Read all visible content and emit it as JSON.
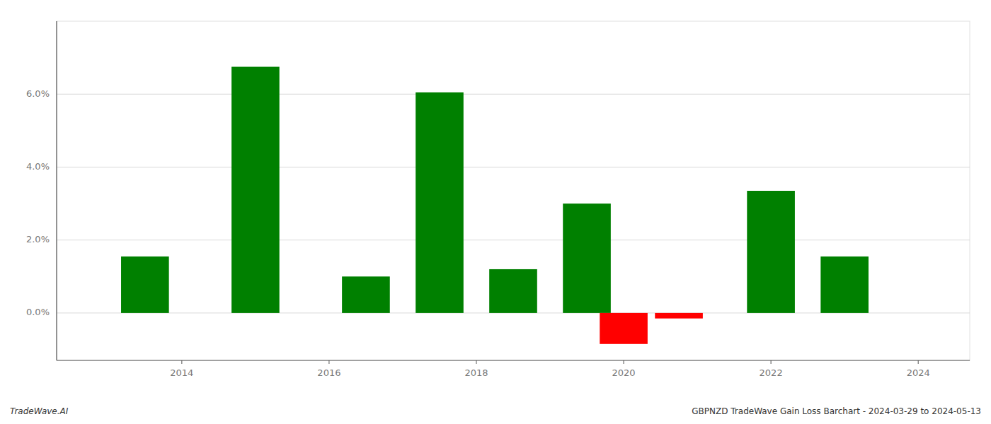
{
  "chart_data": {
    "type": "bar",
    "x": [
      2013.5,
      2015.0,
      2016.5,
      2017.5,
      2018.5,
      2019.5,
      2020.0,
      2020.75,
      2022.0,
      2023.0
    ],
    "values": [
      0.0155,
      0.0675,
      0.01,
      0.0605,
      0.012,
      0.03,
      -0.0085,
      -0.0015,
      0.0335,
      0.0155
    ],
    "colors": [
      "#008000",
      "#008000",
      "#008000",
      "#008000",
      "#008000",
      "#008000",
      "#ff0000",
      "#ff0000",
      "#008000",
      "#008000"
    ],
    "xlim": [
      2012.3,
      2024.7
    ],
    "ylim": [
      -0.013,
      0.08
    ],
    "xticks": [
      2014,
      2016,
      2018,
      2020,
      2022,
      2024
    ],
    "yticks": [
      {
        "value": 0.0,
        "label": "0.0%"
      },
      {
        "value": 0.02,
        "label": "2.0%"
      },
      {
        "value": 0.04,
        "label": "4.0%"
      },
      {
        "value": 0.06,
        "label": "6.0%"
      }
    ],
    "grid": true,
    "annotations": [
      "TradeWave.AI",
      "GBPNZD TradeWave Gain Loss Barchart - 2024-03-29 to 2024-05-13"
    ]
  }
}
